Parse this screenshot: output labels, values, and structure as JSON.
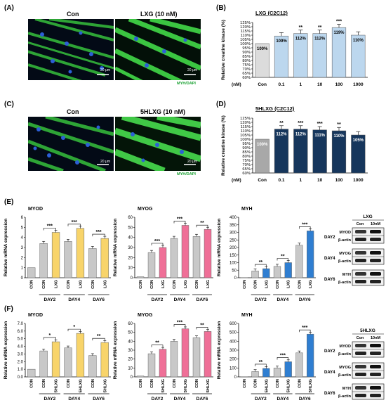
{
  "panel_labels": {
    "A": "(A)",
    "B": "(B)",
    "C": "(C)",
    "D": "(D)",
    "E": "(E)",
    "F": "(F)"
  },
  "microscopy": {
    "A": {
      "left_label": "Con",
      "right_label": "LXG (10 nM)",
      "scale": "20 μm",
      "stain": "MYH/DAPI"
    },
    "C": {
      "left_label": "Con",
      "right_label": "5HLXG (10 nM)",
      "scale": "20 μm",
      "stain": "MYH/DAPI"
    }
  },
  "colors": {
    "gray": "#c8c8c8",
    "lightblue": "#bcd7ee",
    "navy": "#16365c",
    "midgray": "#a8a8a8",
    "yellow": "#f8d46a",
    "pink": "#ef6f97",
    "blue": "#2f7ed1",
    "sig": "#000000"
  },
  "western": {
    "E": {
      "title": "LXG",
      "lanes": [
        "Con",
        "10nM"
      ],
      "days": [
        {
          "day": "DAY2",
          "bands": [
            "MYOD",
            "β-actin"
          ]
        },
        {
          "day": "DAY4",
          "bands": [
            "MYOG",
            "β-actin"
          ]
        },
        {
          "day": "DAY6",
          "bands": [
            "MYH",
            "β-actin"
          ]
        }
      ]
    },
    "F": {
      "title": "5HLXG",
      "lanes": [
        "Con",
        "10nM"
      ],
      "days": [
        {
          "day": "DAY2",
          "bands": [
            "MYOD",
            "β-actin"
          ]
        },
        {
          "day": "DAY4",
          "bands": [
            "MYOG",
            "β-actin"
          ]
        },
        {
          "day": "DAY6",
          "bands": [
            "MYH",
            "β-actin"
          ]
        }
      ]
    }
  },
  "chart_data": [
    {
      "id": "B",
      "type": "bar",
      "title": "LXG (C2C12)",
      "ylabel": "Relative creatine kinase (%)",
      "xunit": "(nM)",
      "categories": [
        "Con",
        "0.1",
        "1",
        "10",
        "100",
        "1000"
      ],
      "values": [
        100,
        109,
        112,
        112,
        119,
        110
      ],
      "data_labels": [
        "100%",
        "109%",
        "112%",
        "112%",
        "119%",
        "110%"
      ],
      "sig": [
        "",
        "",
        "**",
        "**",
        "***",
        ""
      ],
      "ylim": [
        60,
        125
      ],
      "yticks": [
        60,
        65,
        70,
        75,
        80,
        85,
        90,
        95,
        100,
        105,
        110,
        115,
        120,
        125
      ],
      "yticklabels": [
        "60%",
        "65%",
        "70%",
        "75%",
        "80%",
        "85%",
        "90%",
        "95%",
        "100%",
        "105%",
        "110%",
        "115%",
        "120%",
        "125%"
      ],
      "colors": [
        "#dcdcdc",
        "#bcd7ee",
        "#bcd7ee",
        "#bcd7ee",
        "#bcd7ee",
        "#bcd7ee"
      ]
    },
    {
      "id": "D",
      "type": "bar",
      "title": "5HLXG (C2C12)",
      "ylabel": "Relative creatine kinase (%)",
      "xunit": "(nM)",
      "categories": [
        "Con",
        "0.1",
        "1",
        "10",
        "100",
        "1000"
      ],
      "values": [
        100,
        112,
        112,
        111,
        110,
        105
      ],
      "data_labels": [
        "100%",
        "112%",
        "112%",
        "111%",
        "110%",
        "105%"
      ],
      "sig": [
        "",
        "**",
        "***",
        "***",
        "**",
        ""
      ],
      "ylim": [
        60,
        125
      ],
      "yticks": [
        60,
        65,
        70,
        75,
        80,
        85,
        90,
        95,
        100,
        105,
        110,
        115,
        120,
        125
      ],
      "yticklabels": [
        "60%",
        "65%",
        "70%",
        "75%",
        "80%",
        "85%",
        "90%",
        "95%",
        "100%",
        "105%",
        "110%",
        "115%",
        "120%",
        "125%"
      ],
      "colors": [
        "#a8a8a8",
        "#16365c",
        "#16365c",
        "#16365c",
        "#16365c",
        "#16365c"
      ]
    },
    {
      "id": "E1",
      "type": "bar",
      "title": "MYOD",
      "ylabel": "Relative mRNA expression",
      "categories": [
        "CON",
        "CON",
        "LXG",
        "CON",
        "LXG",
        "CON",
        "LXG"
      ],
      "groups": [
        {
          "label": "DAY2",
          "idx": [
            1,
            2
          ]
        },
        {
          "label": "DAY4",
          "idx": [
            3,
            4
          ]
        },
        {
          "label": "DAY6",
          "idx": [
            5,
            6
          ]
        }
      ],
      "values": [
        1.0,
        3.4,
        4.5,
        3.6,
        4.9,
        2.9,
        3.9
      ],
      "ylim": [
        0,
        6
      ],
      "yticks": [
        0,
        1,
        2,
        3,
        4,
        5,
        6
      ],
      "colors": [
        "#c8c8c8",
        "#c8c8c8",
        "#f8d46a",
        "#c8c8c8",
        "#f8d46a",
        "#c8c8c8",
        "#f8d46a"
      ],
      "sig": [
        {
          "a": 1,
          "b": 2,
          "s": "***"
        },
        {
          "a": 3,
          "b": 4,
          "s": "***"
        },
        {
          "a": 5,
          "b": 6,
          "s": "***"
        }
      ]
    },
    {
      "id": "E2",
      "type": "bar",
      "title": "MYOG",
      "ylabel": "Relative mRNA expression",
      "categories": [
        "CON",
        "CON",
        "LXG",
        "CON",
        "LXG",
        "CON",
        "LXG"
      ],
      "groups": [
        {
          "label": "DAY2",
          "idx": [
            1,
            2
          ]
        },
        {
          "label": "DAY4",
          "idx": [
            3,
            4
          ]
        },
        {
          "label": "DAY6",
          "idx": [
            5,
            6
          ]
        }
      ],
      "values": [
        1,
        25,
        30,
        39,
        52,
        41,
        48
      ],
      "ylim": [
        0,
        60
      ],
      "yticks": [
        0,
        10,
        20,
        30,
        40,
        50,
        60
      ],
      "colors": [
        "#c8c8c8",
        "#c8c8c8",
        "#ef6f97",
        "#c8c8c8",
        "#ef6f97",
        "#c8c8c8",
        "#ef6f97"
      ],
      "sig": [
        {
          "a": 1,
          "b": 2,
          "s": "***"
        },
        {
          "a": 3,
          "b": 4,
          "s": "***"
        },
        {
          "a": 5,
          "b": 6,
          "s": "**"
        }
      ]
    },
    {
      "id": "E3",
      "type": "bar",
      "title": "MYH",
      "ylabel": "Relative mRNA expression",
      "categories": [
        "CON",
        "CON",
        "LXG",
        "CON",
        "LXG",
        "CON",
        "LXG"
      ],
      "groups": [
        {
          "label": "DAY2",
          "idx": [
            1,
            2
          ]
        },
        {
          "label": "DAY4",
          "idx": [
            3,
            4
          ]
        },
        {
          "label": "DAY6",
          "idx": [
            5,
            6
          ]
        }
      ],
      "values": [
        1,
        45,
        60,
        75,
        100,
        215,
        310
      ],
      "ylim": [
        0,
        400
      ],
      "yticks": [
        0,
        50,
        100,
        150,
        200,
        250,
        300,
        350,
        400
      ],
      "colors": [
        "#c8c8c8",
        "#c8c8c8",
        "#2f7ed1",
        "#c8c8c8",
        "#2f7ed1",
        "#c8c8c8",
        "#2f7ed1"
      ],
      "sig": [
        {
          "a": 1,
          "b": 2,
          "s": "**"
        },
        {
          "a": 3,
          "b": 4,
          "s": "**"
        },
        {
          "a": 5,
          "b": 6,
          "s": "***"
        }
      ]
    },
    {
      "id": "F1",
      "type": "bar",
      "title": "MYOD",
      "ylabel": "Relative mRNA expression",
      "categories": [
        "CON",
        "CON",
        "5HLXG",
        "CON",
        "5HLXG",
        "CON",
        "5HLXG"
      ],
      "groups": [
        {
          "label": "DAY2",
          "idx": [
            1,
            2
          ]
        },
        {
          "label": "DAY4",
          "idx": [
            3,
            4
          ]
        },
        {
          "label": "DAY6",
          "idx": [
            5,
            6
          ]
        }
      ],
      "values": [
        1.0,
        3.4,
        4.6,
        3.8,
        5.7,
        2.8,
        4.5
      ],
      "ylim": [
        0,
        7
      ],
      "yticks": [
        0,
        1,
        2,
        3,
        4,
        5,
        6,
        7
      ],
      "yticklabels": [
        "0.0",
        "1.0",
        "2.0",
        "3.0",
        "4.0",
        "5.0",
        "6.0",
        "7.0"
      ],
      "colors": [
        "#c8c8c8",
        "#c8c8c8",
        "#f8d46a",
        "#c8c8c8",
        "#f8d46a",
        "#c8c8c8",
        "#f8d46a"
      ],
      "sig": [
        {
          "a": 1,
          "b": 2,
          "s": "*"
        },
        {
          "a": 3,
          "b": 4,
          "s": "*"
        },
        {
          "a": 5,
          "b": 6,
          "s": "**"
        }
      ]
    },
    {
      "id": "F2",
      "type": "bar",
      "title": "MYOG",
      "ylabel": "Relative mRNA expression",
      "categories": [
        "CON",
        "CON",
        "5HLXG",
        "CON",
        "5HLXG",
        "CON",
        "5HLXG"
      ],
      "groups": [
        {
          "label": "DAY2",
          "idx": [
            1,
            2
          ]
        },
        {
          "label": "DAY4",
          "idx": [
            3,
            4
          ]
        },
        {
          "label": "DAY6",
          "idx": [
            5,
            6
          ]
        }
      ],
      "values": [
        1,
        26,
        31,
        40,
        54,
        44,
        51
      ],
      "ylim": [
        0,
        60
      ],
      "yticks": [
        0,
        10,
        20,
        30,
        40,
        50,
        60
      ],
      "colors": [
        "#c8c8c8",
        "#c8c8c8",
        "#ef6f97",
        "#c8c8c8",
        "#ef6f97",
        "#c8c8c8",
        "#ef6f97"
      ],
      "sig": [
        {
          "a": 1,
          "b": 2,
          "s": "**"
        },
        {
          "a": 3,
          "b": 4,
          "s": "***"
        },
        {
          "a": 5,
          "b": 6,
          "s": "**"
        }
      ]
    },
    {
      "id": "F3",
      "type": "bar",
      "title": "MYH",
      "ylabel": "Relative mRNA expression",
      "categories": [
        "CON",
        "CON",
        "5HLXG",
        "CON",
        "5HLXG",
        "CON",
        "5HLXG"
      ],
      "groups": [
        {
          "label": "DAY2",
          "idx": [
            1,
            2
          ]
        },
        {
          "label": "DAY4",
          "idx": [
            3,
            4
          ]
        },
        {
          "label": "DAY6",
          "idx": [
            5,
            6
          ]
        }
      ],
      "values": [
        1,
        60,
        95,
        100,
        170,
        270,
        480
      ],
      "ylim": [
        0,
        600
      ],
      "yticks": [
        0,
        100,
        200,
        300,
        400,
        500,
        600
      ],
      "colors": [
        "#c8c8c8",
        "#c8c8c8",
        "#2f7ed1",
        "#c8c8c8",
        "#2f7ed1",
        "#c8c8c8",
        "#2f7ed1"
      ],
      "sig": [
        {
          "a": 1,
          "b": 2,
          "s": "**"
        },
        {
          "a": 3,
          "b": 4,
          "s": "***"
        },
        {
          "a": 5,
          "b": 6,
          "s": "***"
        }
      ]
    }
  ]
}
